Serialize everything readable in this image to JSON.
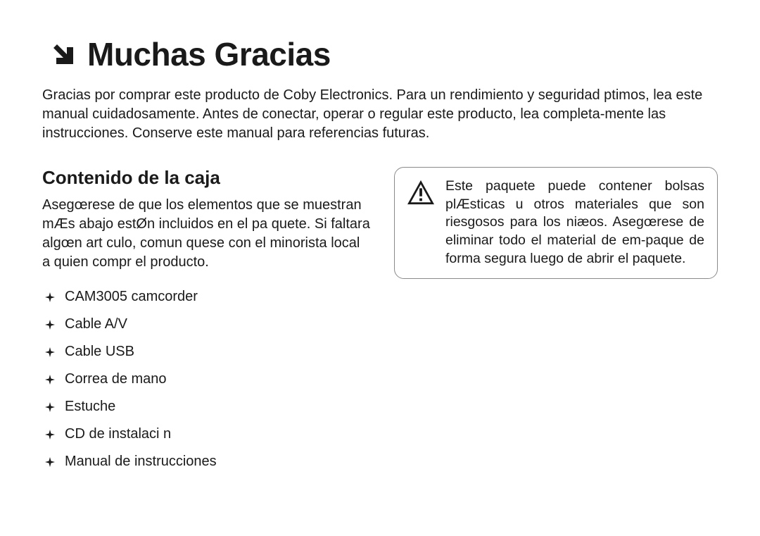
{
  "colors": {
    "text": "#1a1a1a",
    "border": "#8a8a8a",
    "background": "#ffffff",
    "iconFill": "#1a1a1a"
  },
  "title": {
    "text": "Muchas Gracias",
    "fontSizePx": 46,
    "fontWeight": 700
  },
  "intro": {
    "text": "Gracias por comprar este producto de Coby Electronics. Para un rendimiento y seguridad  ptimos, lea este manual cuidadosamente. Antes de conectar, operar o regular este producto, lea completa-mente las instrucciones. Conserve este manual para referencias futuras.",
    "fontSizePx": 20
  },
  "subheading": {
    "text": "Contenido de la caja",
    "fontSizePx": 26,
    "fontWeight": 700
  },
  "subtext": {
    "text": "Asegœrese de que los elementos que se muestran mÆs abajo estØn incluidos en el pa quete. Si faltara algœn art culo, comun quese con el minorista local a quien compr  el producto.",
    "fontSizePx": 20
  },
  "items": [
    "CAM3005 camcorder",
    "Cable A/V",
    "Cable USB",
    "Correa de mano",
    "Estuche",
    "CD de instalaci n",
    "Manual de instrucciones"
  ],
  "warning": {
    "text": "Este paquete puede contener bolsas plÆsticas u otros materiales que son riesgosos para los niæos. Asegœrese de eliminar todo el material de em-paque de forma segura luego de abrir el paquete.",
    "fontSizePx": 19.5,
    "boxWidthPx": 460,
    "borderRadiusPx": 14
  },
  "layout": {
    "pageWidthPx": 1080,
    "pageHeightPx": 761,
    "columnGapPx": 34
  }
}
